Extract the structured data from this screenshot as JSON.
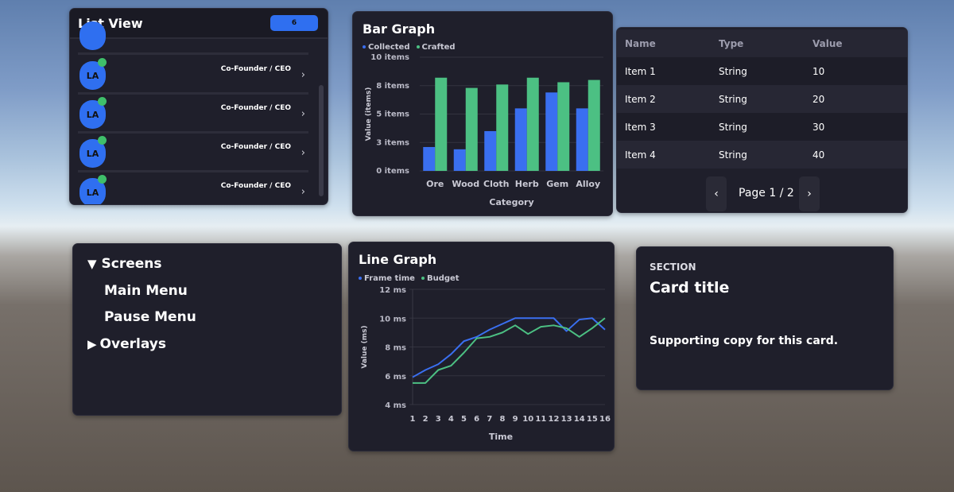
{
  "list_view": {
    "title": "List View",
    "badge": "6",
    "items": [
      {
        "initials": "LA",
        "role": "Co-Founder / CEO"
      },
      {
        "initials": "LA",
        "role": "Co-Founder / CEO"
      },
      {
        "initials": "LA",
        "role": "Co-Founder / CEO"
      },
      {
        "initials": "LA",
        "role": "Co-Founder / CEO"
      }
    ],
    "chevron": "›",
    "accent": "#2f6ff0",
    "status_color": "#3fbf6a"
  },
  "bar_graph": {
    "title": "Bar Graph",
    "legend": [
      "Collected",
      "Crafted"
    ]
  },
  "line_graph": {
    "title": "Line Graph",
    "legend": [
      "Frame time",
      "Budget"
    ]
  },
  "chart_data": [
    {
      "type": "bar",
      "title": "Bar Graph",
      "categories": [
        "Ore",
        "Wood",
        "Cloth",
        "Herb",
        "Gem",
        "Alloy"
      ],
      "series": [
        {
          "name": "Collected",
          "color": "#3a6ff0",
          "values": [
            2.1,
            1.9,
            3.5,
            5.5,
            6.9,
            5.5
          ]
        },
        {
          "name": "Crafted",
          "color": "#4cc083",
          "values": [
            8.2,
            7.3,
            7.6,
            8.2,
            7.8,
            8.0
          ]
        }
      ],
      "xlabel": "Category",
      "ylabel": "Value (items)",
      "ylim": [
        0,
        10
      ],
      "yticks": [
        0,
        2.5,
        5,
        7.5,
        10
      ],
      "yticklabels": [
        "0 items",
        "3 items",
        "5 items",
        "8 items",
        "10 items"
      ],
      "grid": true,
      "legend_position": "top-left"
    },
    {
      "type": "line",
      "title": "Line Graph",
      "x": [
        1,
        2,
        3,
        4,
        5,
        6,
        7,
        8,
        9,
        10,
        11,
        12,
        13,
        14,
        15,
        16
      ],
      "series": [
        {
          "name": "Frame time",
          "color": "#3a6ff0",
          "values": [
            5.9,
            6.4,
            6.8,
            7.5,
            8.4,
            8.7,
            9.2,
            9.6,
            10.0,
            10.0,
            10.0,
            10.0,
            9.1,
            9.9,
            10.0,
            9.2
          ]
        },
        {
          "name": "Budget",
          "color": "#4cc083",
          "values": [
            5.5,
            5.5,
            6.4,
            6.7,
            7.6,
            8.6,
            8.7,
            9.0,
            9.5,
            8.9,
            9.4,
            9.5,
            9.3,
            8.7,
            9.3,
            10.0
          ]
        }
      ],
      "xlabel": "Time",
      "ylabel": "Value (ms)",
      "ylim": [
        4,
        12
      ],
      "yticks": [
        4,
        6,
        8,
        10,
        12
      ],
      "yticklabels": [
        "4 ms",
        "6 ms",
        "8 ms",
        "10 ms",
        "12 ms"
      ],
      "grid": true,
      "legend_position": "top-left"
    }
  ],
  "table": {
    "headers": [
      "Name",
      "Type",
      "Value"
    ],
    "rows": [
      [
        "Item 1",
        "String",
        "10"
      ],
      [
        "Item 2",
        "String",
        "20"
      ],
      [
        "Item 3",
        "String",
        "30"
      ],
      [
        "Item 4",
        "String",
        "40"
      ]
    ],
    "pager": {
      "prev": "‹",
      "label": "Page 1 / 2",
      "next": "›"
    }
  },
  "tree": {
    "root": {
      "label": "Screens",
      "expanded_icon": "▼"
    },
    "children": [
      "Main Menu",
      "Pause Menu"
    ],
    "collapsed": {
      "label": "Overlays",
      "collapsed_icon": "▶"
    }
  },
  "card": {
    "section": "SECTION",
    "title": "Card title",
    "body": "Supporting copy for this card."
  }
}
